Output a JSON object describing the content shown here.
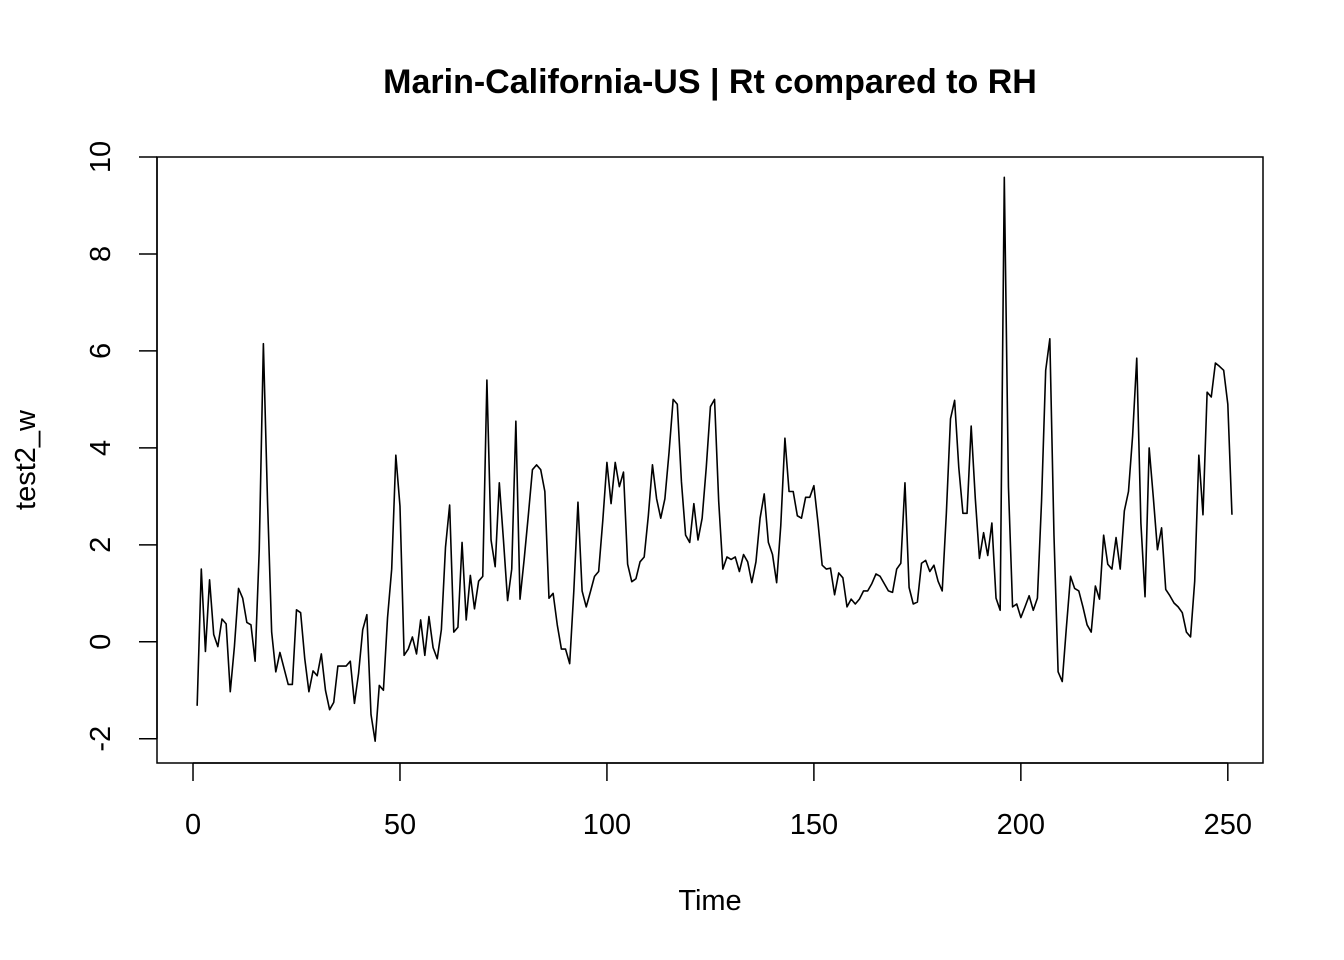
{
  "chart_data": {
    "type": "line",
    "title": "Marin-California-US | Rt compared to RH",
    "xlabel": "Time",
    "ylabel": "test2_w",
    "xlim": [
      -8.7,
      258.5
    ],
    "ylim": [
      -2.5,
      10
    ],
    "x_ticks": [
      0,
      50,
      100,
      150,
      200,
      250
    ],
    "x_tick_labels": [
      "0",
      "50",
      "100",
      "150",
      "200",
      "250"
    ],
    "y_ticks": [
      -2,
      0,
      2,
      4,
      6,
      8,
      10
    ],
    "y_tick_labels": [
      "-2",
      "0",
      "2",
      "4",
      "6",
      "8",
      "10"
    ],
    "grid": false,
    "line_color": "#000000",
    "series": [
      {
        "x_start": 1,
        "x_step": 1,
        "values": [
          -1.32,
          1.5,
          -0.2,
          1.28,
          0.15,
          -0.1,
          0.47,
          0.37,
          -1.03,
          -0.1,
          1.1,
          0.9,
          0.4,
          0.35,
          -0.4,
          1.9,
          6.15,
          2.9,
          0.2,
          -0.62,
          -0.22,
          -0.55,
          -0.88,
          -0.88,
          0.66,
          0.6,
          -0.35,
          -1.03,
          -0.6,
          -0.7,
          -0.25,
          -1.0,
          -1.4,
          -1.25,
          -0.5,
          -0.5,
          -0.5,
          -0.4,
          -1.27,
          -0.65,
          0.25,
          0.56,
          -1.5,
          -2.05,
          -0.9,
          -1.0,
          0.5,
          1.5,
          3.85,
          2.8,
          -0.28,
          -0.15,
          0.1,
          -0.25,
          0.45,
          -0.28,
          0.52,
          -0.12,
          -0.35,
          0.25,
          1.95,
          2.82,
          0.2,
          0.3,
          2.05,
          0.45,
          1.37,
          0.68,
          1.25,
          1.35,
          5.4,
          2.1,
          1.55,
          3.28,
          2.1,
          0.85,
          1.5,
          4.55,
          0.88,
          1.7,
          2.6,
          3.55,
          3.65,
          3.55,
          3.1,
          0.9,
          1.0,
          0.35,
          -0.15,
          -0.15,
          -0.45,
          1.05,
          2.88,
          1.05,
          0.72,
          1.03,
          1.35,
          1.45,
          2.5,
          3.7,
          2.85,
          3.7,
          3.2,
          3.5,
          1.6,
          1.24,
          1.3,
          1.65,
          1.75,
          2.6,
          3.65,
          2.95,
          2.55,
          2.95,
          3.9,
          5.0,
          4.9,
          3.3,
          2.2,
          2.05,
          2.85,
          2.1,
          2.55,
          3.6,
          4.85,
          5.0,
          2.9,
          1.5,
          1.75,
          1.7,
          1.75,
          1.45,
          1.8,
          1.65,
          1.22,
          1.65,
          2.55,
          3.05,
          2.05,
          1.8,
          1.22,
          2.4,
          4.2,
          3.1,
          3.1,
          2.6,
          2.55,
          2.98,
          2.98,
          3.22,
          2.45,
          1.58,
          1.5,
          1.52,
          0.97,
          1.42,
          1.32,
          0.72,
          0.88,
          0.78,
          0.88,
          1.05,
          1.05,
          1.2,
          1.4,
          1.35,
          1.2,
          1.05,
          1.02,
          1.5,
          1.62,
          3.28,
          1.12,
          0.78,
          0.82,
          1.62,
          1.68,
          1.45,
          1.58,
          1.25,
          1.05,
          2.65,
          4.6,
          4.98,
          3.6,
          2.65,
          2.65,
          4.45,
          2.95,
          1.72,
          2.25,
          1.78,
          2.45,
          0.9,
          0.65,
          9.58,
          3.2,
          0.72,
          0.78,
          0.5,
          0.72,
          0.95,
          0.65,
          0.9,
          2.9,
          5.6,
          6.25,
          2.2,
          -0.62,
          -0.82,
          0.3,
          1.35,
          1.1,
          1.05,
          0.72,
          0.35,
          0.2,
          1.15,
          0.88,
          2.2,
          1.6,
          1.5,
          2.15,
          1.5,
          2.7,
          3.1,
          4.25,
          5.85,
          2.45,
          0.93,
          4.0,
          2.98,
          1.9,
          2.35,
          1.08,
          0.95,
          0.8,
          0.72,
          0.6,
          0.2,
          0.1,
          1.25,
          3.85,
          2.62,
          5.15,
          5.05,
          5.75,
          5.68,
          5.6,
          4.9,
          2.62
        ]
      }
    ]
  }
}
